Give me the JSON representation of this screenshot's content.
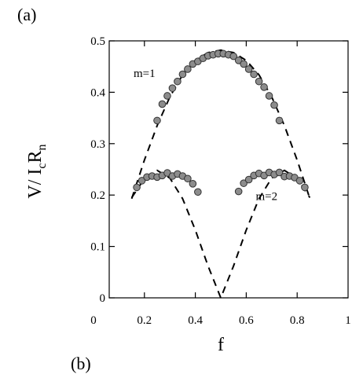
{
  "chart_data": {
    "type": "scatter",
    "panel_label": "(a)",
    "panel_label_bottom": "(b)",
    "xlabel": "f",
    "ylabel_parts": {
      "base": "V/ I",
      "sub1": "c",
      "mid": "R",
      "sub2": "n"
    },
    "xlim": [
      0,
      1
    ],
    "ylim": [
      0,
      0.5
    ],
    "x_ticks": [
      "0",
      "0.2",
      "0.4",
      "0.6",
      "0.8",
      "1"
    ],
    "x_tick_values": [
      0,
      0.2,
      0.4,
      0.6,
      0.8,
      1
    ],
    "y_ticks": [
      "0",
      "0.1",
      "0.2",
      "0.3",
      "0.4",
      "0.5"
    ],
    "y_tick_values": [
      0,
      0.1,
      0.2,
      0.3,
      0.4,
      0.5
    ],
    "annotations": [
      {
        "text": "m=1",
        "x": 0.2,
        "y": 0.43
      },
      {
        "text": "m=2",
        "x": 0.68,
        "y": 0.19
      }
    ],
    "series": [
      {
        "style": "dashed-line",
        "x": [
          0.15,
          0.2,
          0.25,
          0.3,
          0.35,
          0.4,
          0.45,
          0.5,
          0.55,
          0.6,
          0.65,
          0.7,
          0.75,
          0.8,
          0.85
        ],
        "y": [
          0.193,
          0.268,
          0.335,
          0.391,
          0.434,
          0.462,
          0.477,
          0.482,
          0.477,
          0.462,
          0.434,
          0.391,
          0.335,
          0.268,
          0.193
        ]
      },
      {
        "style": "dashed-line",
        "x": [
          0.15,
          0.2,
          0.25,
          0.3,
          0.35,
          0.4,
          0.45,
          0.5,
          0.55,
          0.6,
          0.65,
          0.7,
          0.75,
          0.8,
          0.85
        ],
        "y": [
          0.195,
          0.232,
          0.248,
          0.233,
          0.193,
          0.132,
          0.062,
          0.0,
          0.062,
          0.132,
          0.193,
          0.233,
          0.248,
          0.232,
          0.195
        ]
      },
      {
        "style": "markers",
        "x": [
          0.25,
          0.27,
          0.29,
          0.31,
          0.33,
          0.35,
          0.37,
          0.39,
          0.41,
          0.43,
          0.45,
          0.47,
          0.49,
          0.51,
          0.53,
          0.55,
          0.57,
          0.59,
          0.61,
          0.63,
          0.65,
          0.67,
          0.69,
          0.71,
          0.73
        ],
        "y": [
          0.345,
          0.377,
          0.393,
          0.408,
          0.421,
          0.435,
          0.445,
          0.455,
          0.46,
          0.466,
          0.471,
          0.473,
          0.475,
          0.475,
          0.473,
          0.47,
          0.462,
          0.455,
          0.445,
          0.435,
          0.421,
          0.41,
          0.393,
          0.375,
          0.345
        ]
      },
      {
        "style": "markers",
        "x": [
          0.17,
          0.19,
          0.21,
          0.23,
          0.25,
          0.27,
          0.29,
          0.31,
          0.33,
          0.35,
          0.37,
          0.39,
          0.41,
          0.57,
          0.59,
          0.61,
          0.63,
          0.65,
          0.67,
          0.69,
          0.71,
          0.73,
          0.75,
          0.77,
          0.79,
          0.81,
          0.83
        ],
        "y": [
          0.215,
          0.228,
          0.235,
          0.237,
          0.235,
          0.238,
          0.243,
          0.237,
          0.241,
          0.237,
          0.232,
          0.222,
          0.206,
          0.207,
          0.223,
          0.23,
          0.238,
          0.242,
          0.238,
          0.244,
          0.24,
          0.244,
          0.236,
          0.237,
          0.234,
          0.228,
          0.215
        ]
      }
    ]
  }
}
